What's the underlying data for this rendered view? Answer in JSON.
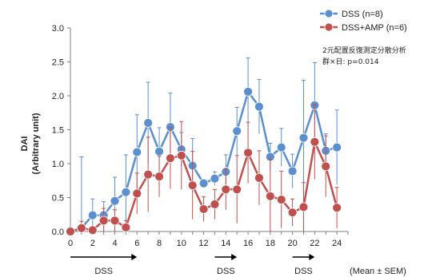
{
  "chart_data": {
    "type": "line",
    "ylabel": "DAI",
    "ylabel_sub": "(Arbitrary unit)",
    "xlabel": "",
    "ylim": [
      0,
      3.0
    ],
    "xlim": [
      0,
      25
    ],
    "yticks": [
      "0.0",
      "0.5",
      "1.0",
      "1.5",
      "2.0",
      "2.5",
      "3.0"
    ],
    "xticks": [
      "0",
      "2",
      "4",
      "6",
      "8",
      "10",
      "12",
      "14",
      "16",
      "18",
      "20",
      "22",
      "24"
    ],
    "legend_position": "top-right",
    "grid": false,
    "series": [
      {
        "name": "DSS (n=8)",
        "color": "#5b8fce",
        "x": [
          0,
          1,
          2,
          3,
          4,
          5,
          6,
          7,
          8,
          9,
          10,
          11,
          12,
          13,
          14,
          15,
          16,
          17,
          18,
          19,
          20,
          21,
          22,
          23,
          24
        ],
        "y": [
          0.0,
          0.05,
          0.24,
          0.24,
          0.45,
          0.58,
          1.17,
          1.6,
          1.18,
          1.54,
          1.21,
          0.97,
          0.71,
          0.78,
          0.88,
          1.48,
          2.06,
          1.84,
          1.1,
          1.24,
          0.89,
          1.38,
          1.86,
          1.19,
          1.24
        ],
        "err": [
          0.0,
          1.05,
          0.24,
          0.2,
          0.35,
          0.55,
          0.55,
          0.6,
          0.35,
          0.5,
          0.25,
          0.4,
          0.05,
          0.1,
          0.25,
          0.35,
          0.5,
          0.4,
          0.2,
          0.28,
          0.25,
          0.85,
          0.63,
          0.25,
          0.55
        ]
      },
      {
        "name": "DSS+AMP (n=6)",
        "color": "#c0504d",
        "x": [
          0,
          1,
          2,
          3,
          4,
          5,
          6,
          7,
          8,
          9,
          10,
          11,
          12,
          13,
          14,
          15,
          16,
          17,
          18,
          19,
          20,
          21,
          22,
          23,
          24
        ],
        "y": [
          0.0,
          0.05,
          0.02,
          0.16,
          0.16,
          0.06,
          0.56,
          0.84,
          0.81,
          1.08,
          1.12,
          0.68,
          0.33,
          0.4,
          0.62,
          0.62,
          1.16,
          0.79,
          0.52,
          0.47,
          0.28,
          0.36,
          1.32,
          0.96,
          0.35
        ],
        "err": [
          0.0,
          0.1,
          0.02,
          0.18,
          0.16,
          0.1,
          0.3,
          0.55,
          0.3,
          0.45,
          0.5,
          0.5,
          0.18,
          0.22,
          0.3,
          0.5,
          0.45,
          0.4,
          0.55,
          0.42,
          0.2,
          0.36,
          0.55,
          0.45,
          0.3
        ]
      }
    ],
    "annotation_lines": [
      "2元配置反復測定分散分析",
      "群×日: p=0.014"
    ],
    "phases": [
      {
        "label": "DSS",
        "start": 0,
        "end": 6
      },
      {
        "label": "DSS",
        "start": 13,
        "end": 15
      },
      {
        "label": "DSS",
        "start": 20,
        "end": 22
      }
    ],
    "footnote": "(Mean ± SEM)"
  }
}
